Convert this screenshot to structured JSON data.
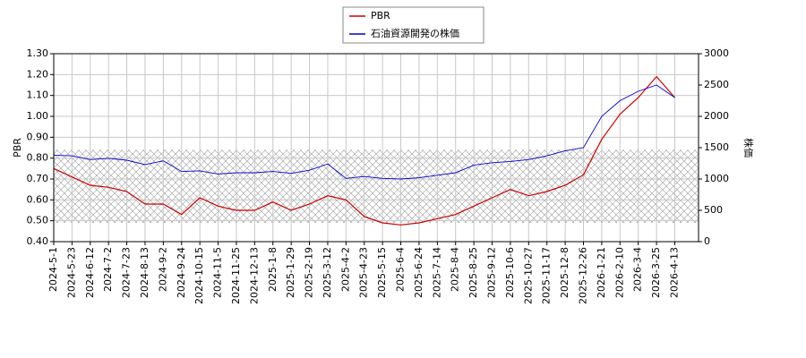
{
  "chart_data": {
    "type": "line",
    "x": [
      "2024-5-1",
      "2024-5-23",
      "2024-6-12",
      "2024-7-2",
      "2024-7-23",
      "2024-8-13",
      "2024-9-2",
      "2024-9-24",
      "2024-10-15",
      "2024-11-5",
      "2024-11-25",
      "2024-12-13",
      "2025-1-8",
      "2025-1-29",
      "2025-2-19",
      "2025-3-12",
      "2025-4-2",
      "2025-4-23",
      "2025-5-15",
      "2025-6-4",
      "2025-6-24",
      "2025-7-14",
      "2025-8-4",
      "2025-8-25",
      "2025-9-12",
      "2025-10-6",
      "2025-10-27",
      "2025-11-17",
      "2025-12-8",
      "2025-12-26",
      "2026-1-21",
      "2026-2-10",
      "2026-3-4",
      "2026-3-25",
      "2026-4-13"
    ],
    "series": [
      {
        "name": "PBR",
        "color": "#cc0000",
        "axis": "y",
        "values": [
          0.75,
          0.71,
          0.67,
          0.66,
          0.64,
          0.58,
          0.58,
          0.53,
          0.61,
          0.57,
          0.55,
          0.55,
          0.59,
          0.55,
          0.58,
          0.62,
          0.6,
          0.52,
          0.49,
          0.48,
          0.49,
          0.51,
          0.53,
          0.57,
          0.61,
          0.65,
          0.62,
          0.64,
          0.67,
          0.72,
          0.89,
          1.01,
          1.09,
          1.19,
          1.09
        ]
      },
      {
        "name": "石油資源開発の株価",
        "color": "#0000cc",
        "axis": "y2",
        "values": [
          1380,
          1370,
          1310,
          1330,
          1300,
          1230,
          1290,
          1120,
          1130,
          1080,
          1100,
          1100,
          1120,
          1090,
          1140,
          1240,
          1010,
          1040,
          1010,
          1000,
          1020,
          1060,
          1100,
          1220,
          1260,
          1280,
          1310,
          1370,
          1450,
          1500,
          2000,
          2250,
          2400,
          2500,
          2300
        ]
      }
    ],
    "ylabel": "PBR",
    "y2label": "株価",
    "ylim": [
      0.4,
      1.3
    ],
    "yticks": [
      {
        "value": 0.4,
        "label": "0.40"
      },
      {
        "value": 0.5,
        "label": "0.50"
      },
      {
        "value": 0.6,
        "label": "0.60"
      },
      {
        "value": 0.7,
        "label": "0.70"
      },
      {
        "value": 0.8,
        "label": "0.80"
      },
      {
        "value": 0.9,
        "label": "0.90"
      },
      {
        "value": 1.0,
        "label": "1.00"
      },
      {
        "value": 1.1,
        "label": "1.10"
      },
      {
        "value": 1.2,
        "label": "1.20"
      },
      {
        "value": 1.3,
        "label": "1.30"
      }
    ],
    "y2lim": [
      0,
      3000
    ],
    "y2ticks": [
      0,
      500,
      1000,
      1500,
      2000,
      2500,
      3000
    ],
    "shaded_ylim": [
      0.49,
      0.84
    ],
    "grid": true
  }
}
